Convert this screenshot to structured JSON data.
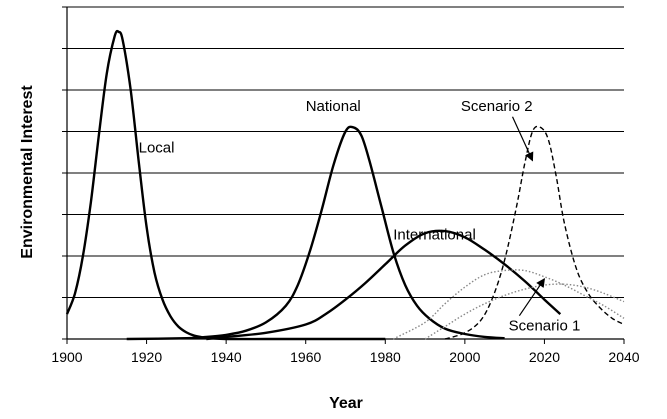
{
  "chart_data": {
    "type": "line",
    "title": "",
    "xlabel": "Year",
    "ylabel": "Environmental Interest",
    "xlim": [
      1900,
      2040
    ],
    "ylim": [
      0,
      8
    ],
    "x_ticks": [
      1900,
      1920,
      1940,
      1960,
      1980,
      2000,
      2020,
      2040
    ],
    "y_tick_count": 8,
    "y_tick_labels_shown": false,
    "grid": "horizontal",
    "legend": "none",
    "series": [
      {
        "name": "Local",
        "style": "solid",
        "color": "#000000",
        "x": [
          1900,
          1902,
          1904,
          1906,
          1908,
          1910,
          1912,
          1913,
          1914,
          1916,
          1918,
          1920,
          1922,
          1924,
          1926,
          1928,
          1930,
          1932,
          1934,
          1936,
          1940,
          1950,
          1960,
          1980
        ],
        "y": [
          0.6,
          1.1,
          2.0,
          3.3,
          4.9,
          6.4,
          7.3,
          7.4,
          7.2,
          6.0,
          4.3,
          2.7,
          1.6,
          0.95,
          0.55,
          0.3,
          0.16,
          0.08,
          0.04,
          0.02,
          0.0,
          0.0,
          0.0,
          0.0
        ]
      },
      {
        "name": "National",
        "style": "solid",
        "color": "#000000",
        "x": [
          1915,
          1930,
          1935,
          1940,
          1945,
          1950,
          1955,
          1958,
          1961,
          1964,
          1967,
          1970,
          1972,
          1974,
          1976,
          1979,
          1982,
          1985,
          1988,
          1991,
          1995,
          2000,
          2005,
          2010
        ],
        "y": [
          0.0,
          0.02,
          0.05,
          0.1,
          0.2,
          0.4,
          0.8,
          1.3,
          2.1,
          3.1,
          4.2,
          5.0,
          5.1,
          4.9,
          4.3,
          3.2,
          2.1,
          1.3,
          0.8,
          0.5,
          0.25,
          0.12,
          0.05,
          0.02
        ]
      },
      {
        "name": "International",
        "style": "solid",
        "color": "#000000",
        "x": [
          1935,
          1940,
          1950,
          1960,
          1965,
          1970,
          1975,
          1980,
          1985,
          1990,
          1995,
          2000,
          2005,
          2010,
          2015,
          2020,
          2024
        ],
        "y": [
          0.0,
          0.05,
          0.15,
          0.35,
          0.6,
          0.95,
          1.35,
          1.8,
          2.25,
          2.55,
          2.6,
          2.45,
          2.15,
          1.8,
          1.4,
          0.95,
          0.6
        ]
      },
      {
        "name": "Scenario 2",
        "style": "dashed",
        "color": "#000000",
        "x": [
          1995,
          2000,
          2004,
          2007,
          2010,
          2013,
          2015,
          2017,
          2019,
          2021,
          2023,
          2025,
          2028,
          2031,
          2034,
          2037,
          2040
        ],
        "y": [
          0.0,
          0.15,
          0.45,
          1.0,
          1.9,
          3.2,
          4.2,
          5.0,
          5.1,
          4.8,
          3.9,
          2.8,
          1.7,
          1.1,
          0.75,
          0.5,
          0.35
        ]
      },
      {
        "name": "Scenario 1",
        "style": "dotted",
        "color": "#888888",
        "x": [
          1982,
          1990,
          1995,
          2000,
          2005,
          2010,
          2015,
          2020,
          2025,
          2030,
          2035,
          2040
        ],
        "y": [
          0.0,
          0.4,
          0.85,
          1.25,
          1.55,
          1.65,
          1.65,
          1.5,
          1.3,
          1.05,
          0.8,
          0.5
        ]
      },
      {
        "name": "",
        "style": "dotted",
        "color": "#888888",
        "x": [
          1990,
          1995,
          2000,
          2005,
          2010,
          2015,
          2020,
          2025,
          2030,
          2035,
          2040
        ],
        "y": [
          0.0,
          0.3,
          0.6,
          0.85,
          1.05,
          1.2,
          1.3,
          1.32,
          1.25,
          1.1,
          0.9
        ]
      }
    ],
    "annotations": [
      {
        "text": "Local",
        "x": 1918,
        "y": 4.5
      },
      {
        "text": "National",
        "x": 1960,
        "y": 5.5
      },
      {
        "text": "International",
        "x": 1982,
        "y": 2.4
      },
      {
        "text": "Scenario 2",
        "x": 1999,
        "y": 5.5,
        "arrow_to": [
          2017,
          4.3
        ]
      },
      {
        "text": "Scenario 1",
        "x": 2011,
        "y": 0.2,
        "arrow_to": [
          2020,
          1.45
        ]
      }
    ]
  }
}
